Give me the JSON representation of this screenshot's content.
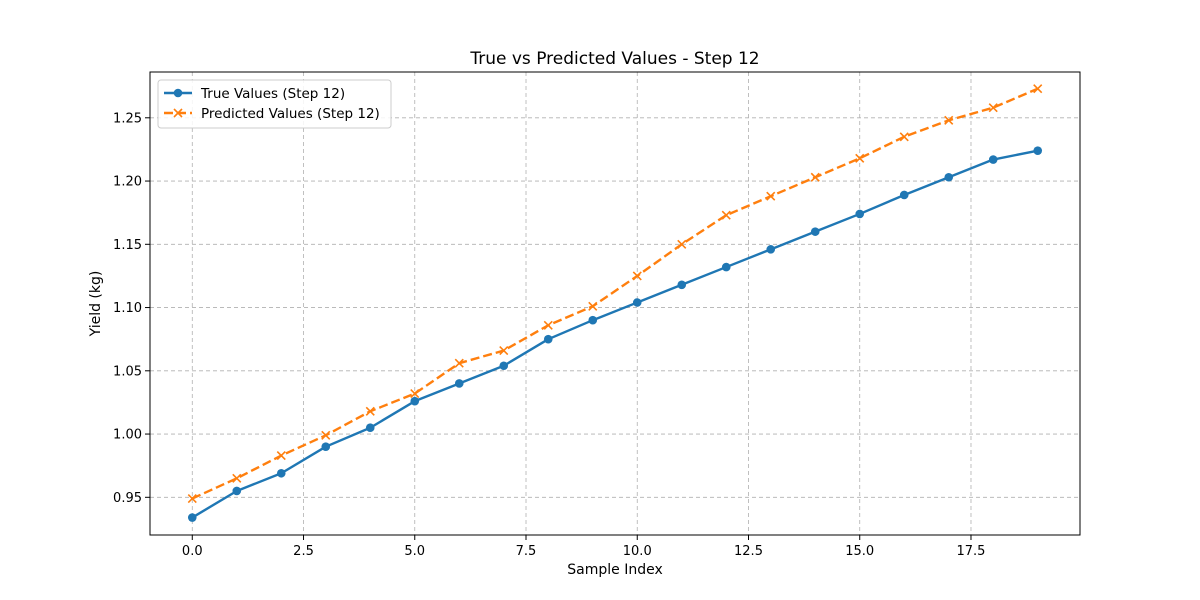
{
  "chart_data": {
    "type": "line",
    "title": "True vs Predicted Values - Step 12",
    "xlabel": "Sample Index",
    "ylabel": "Yield (kg)",
    "xlim": [
      -0.95,
      19.95
    ],
    "ylim": [
      0.9202,
      1.2862
    ],
    "xticks": [
      0.0,
      2.5,
      5.0,
      7.5,
      10.0,
      12.5,
      15.0,
      17.5
    ],
    "xtick_labels": [
      "0.0",
      "2.5",
      "5.0",
      "7.5",
      "10.0",
      "12.5",
      "15.0",
      "17.5"
    ],
    "yticks": [
      0.95,
      1.0,
      1.05,
      1.1,
      1.15,
      1.2,
      1.25
    ],
    "ytick_labels": [
      "0.95",
      "1.00",
      "1.05",
      "1.10",
      "1.15",
      "1.20",
      "1.25"
    ],
    "grid": true,
    "legend_position": "top-left",
    "x": [
      0,
      1,
      2,
      3,
      4,
      5,
      6,
      7,
      8,
      9,
      10,
      11,
      12,
      13,
      14,
      15,
      16,
      17,
      18,
      19
    ],
    "series": [
      {
        "name": "True Values (Step 12)",
        "color": "#1f77b4",
        "marker": "circle",
        "line_style": "solid",
        "values": [
          0.934,
          0.955,
          0.969,
          0.99,
          1.005,
          1.026,
          1.04,
          1.054,
          1.075,
          1.09,
          1.104,
          1.118,
          1.132,
          1.146,
          1.16,
          1.174,
          1.189,
          1.203,
          1.217,
          1.224
        ]
      },
      {
        "name": "Predicted Values (Step 12)",
        "color": "#ff7f0e",
        "marker": "x",
        "line_style": "dashed",
        "values": [
          0.949,
          0.965,
          0.983,
          0.999,
          1.018,
          1.032,
          1.056,
          1.066,
          1.086,
          1.101,
          1.125,
          1.15,
          1.173,
          1.188,
          1.203,
          1.218,
          1.235,
          1.248,
          1.258,
          1.273
        ]
      }
    ]
  }
}
